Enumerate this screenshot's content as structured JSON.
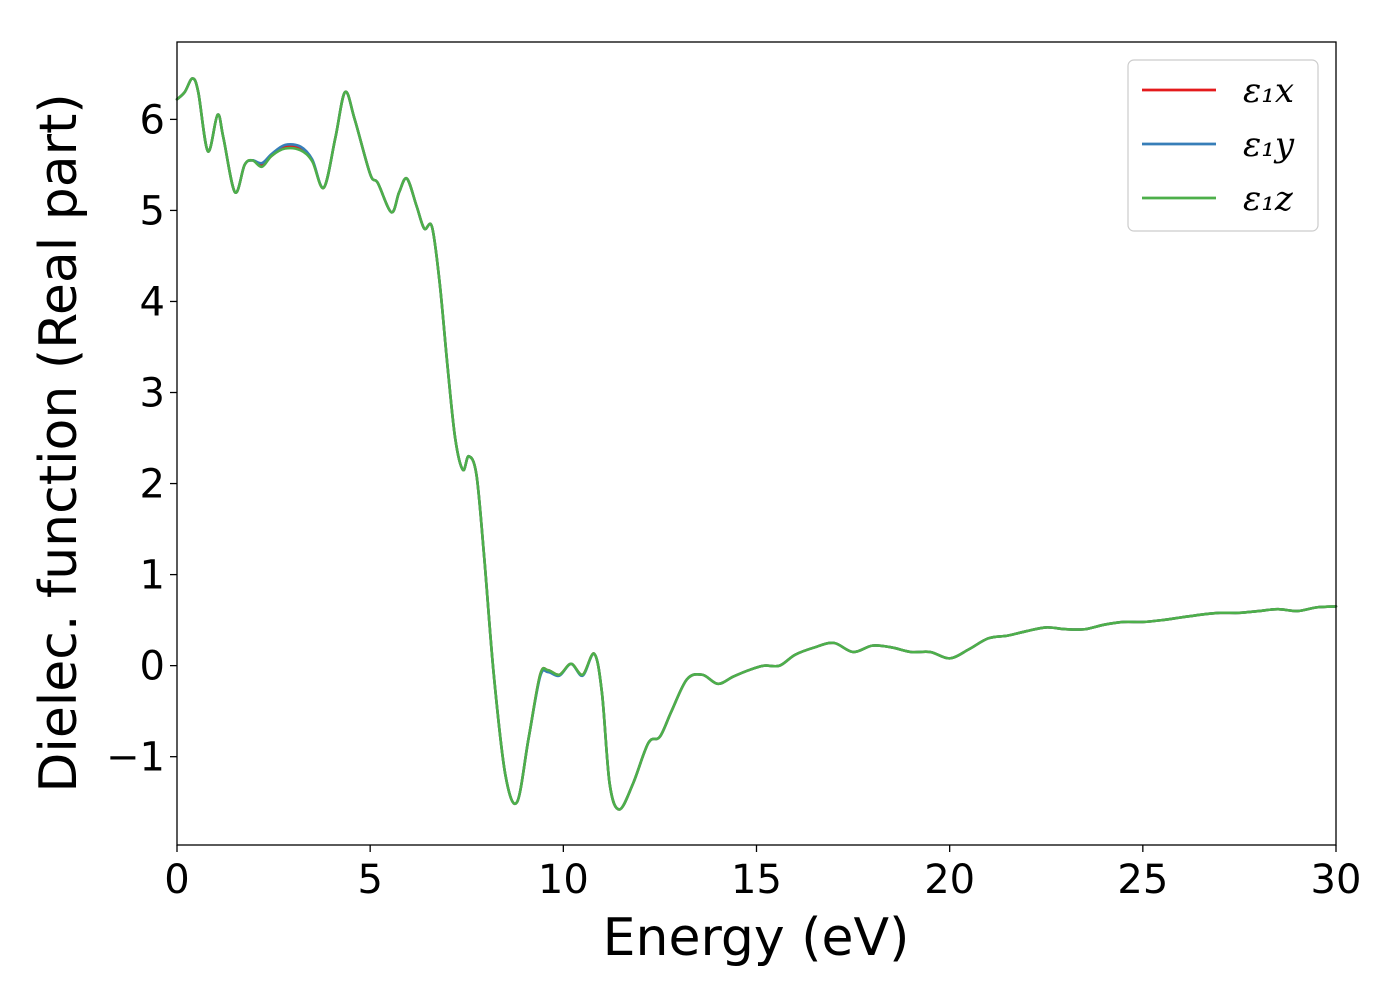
{
  "chart_data": {
    "type": "line",
    "title": "",
    "xlabel": "Energy (eV)",
    "ylabel": "Dielec. function (Real part)",
    "xlim": [
      0,
      30
    ],
    "ylim": [
      -1.97,
      6.85
    ],
    "xticks": [
      0,
      5,
      10,
      15,
      20,
      25,
      30
    ],
    "xtick_labels": [
      "0",
      "5",
      "10",
      "15",
      "20",
      "25",
      "30"
    ],
    "yticks": [
      -1,
      0,
      1,
      2,
      3,
      4,
      5,
      6
    ],
    "ytick_labels": [
      "−1",
      "0",
      "1",
      "2",
      "3",
      "4",
      "5",
      "6"
    ],
    "grid": false,
    "legend_position": "top-right",
    "x": [
      0,
      0.2,
      0.4,
      0.55,
      0.8,
      1.05,
      1.2,
      1.5,
      1.75,
      1.95,
      2.2,
      2.45,
      2.8,
      3.2,
      3.5,
      3.8,
      4.1,
      4.35,
      4.6,
      5.0,
      5.2,
      5.55,
      5.75,
      5.95,
      6.2,
      6.4,
      6.6,
      6.8,
      7.0,
      7.2,
      7.4,
      7.55,
      7.75,
      7.95,
      8.2,
      8.5,
      8.8,
      9.1,
      9.4,
      9.6,
      9.9,
      10.2,
      10.5,
      10.8,
      11.0,
      11.2,
      11.45,
      11.8,
      12.2,
      12.5,
      12.8,
      13.2,
      13.6,
      14.0,
      14.4,
      14.8,
      15.2,
      15.6,
      16.0,
      16.5,
      17.0,
      17.5,
      18.0,
      18.5,
      19.0,
      19.5,
      20.0,
      20.5,
      21.0,
      21.5,
      22.0,
      22.5,
      23.0,
      23.5,
      24.0,
      24.5,
      25.0,
      25.5,
      26.0,
      26.5,
      27.0,
      27.5,
      28.0,
      28.5,
      29.0,
      29.5,
      30.0
    ],
    "series": [
      {
        "name": "ε₁x",
        "color": "#e41a1c",
        "values": [
          6.22,
          6.3,
          6.45,
          6.3,
          5.65,
          6.05,
          5.8,
          5.2,
          5.5,
          5.55,
          5.5,
          5.6,
          5.7,
          5.68,
          5.55,
          5.25,
          5.8,
          6.3,
          6.0,
          5.4,
          5.3,
          4.98,
          5.2,
          5.35,
          5.05,
          4.8,
          4.82,
          4.2,
          3.3,
          2.5,
          2.15,
          2.3,
          2.1,
          1.2,
          -0.1,
          -1.2,
          -1.5,
          -0.8,
          -0.1,
          -0.05,
          -0.1,
          0.02,
          -0.1,
          0.13,
          -0.3,
          -1.3,
          -1.58,
          -1.3,
          -0.85,
          -0.78,
          -0.5,
          -0.15,
          -0.1,
          -0.2,
          -0.12,
          -0.05,
          0.0,
          0.0,
          0.12,
          0.2,
          0.25,
          0.15,
          0.22,
          0.2,
          0.15,
          0.15,
          0.08,
          0.18,
          0.3,
          0.33,
          0.38,
          0.42,
          0.4,
          0.4,
          0.45,
          0.48,
          0.48,
          0.5,
          0.53,
          0.56,
          0.58,
          0.58,
          0.6,
          0.62,
          0.6,
          0.64,
          0.65
        ]
      },
      {
        "name": "ε₁y",
        "color": "#377eb8",
        "values": [
          6.22,
          6.3,
          6.45,
          6.3,
          5.65,
          6.05,
          5.8,
          5.2,
          5.5,
          5.55,
          5.52,
          5.62,
          5.72,
          5.7,
          5.56,
          5.25,
          5.8,
          6.3,
          6.0,
          5.4,
          5.3,
          4.98,
          5.2,
          5.35,
          5.05,
          4.8,
          4.82,
          4.2,
          3.3,
          2.5,
          2.15,
          2.3,
          2.1,
          1.2,
          -0.1,
          -1.2,
          -1.5,
          -0.8,
          -0.12,
          -0.07,
          -0.11,
          0.02,
          -0.11,
          0.13,
          -0.3,
          -1.3,
          -1.58,
          -1.3,
          -0.85,
          -0.78,
          -0.5,
          -0.15,
          -0.1,
          -0.2,
          -0.12,
          -0.05,
          0.0,
          0.0,
          0.12,
          0.2,
          0.25,
          0.15,
          0.22,
          0.2,
          0.15,
          0.15,
          0.08,
          0.18,
          0.3,
          0.33,
          0.38,
          0.42,
          0.4,
          0.4,
          0.45,
          0.48,
          0.48,
          0.5,
          0.53,
          0.56,
          0.58,
          0.58,
          0.6,
          0.62,
          0.6,
          0.64,
          0.65
        ]
      },
      {
        "name": "ε₁z",
        "color": "#4daf4a",
        "values": [
          6.22,
          6.3,
          6.45,
          6.3,
          5.65,
          6.05,
          5.8,
          5.2,
          5.5,
          5.55,
          5.48,
          5.6,
          5.68,
          5.66,
          5.54,
          5.25,
          5.8,
          6.3,
          6.0,
          5.4,
          5.3,
          4.98,
          5.2,
          5.35,
          5.05,
          4.8,
          4.82,
          4.2,
          3.3,
          2.5,
          2.15,
          2.3,
          2.1,
          1.2,
          -0.1,
          -1.2,
          -1.5,
          -0.8,
          -0.1,
          -0.05,
          -0.1,
          0.02,
          -0.1,
          0.13,
          -0.3,
          -1.3,
          -1.58,
          -1.3,
          -0.85,
          -0.78,
          -0.5,
          -0.15,
          -0.1,
          -0.2,
          -0.12,
          -0.05,
          0.0,
          0.0,
          0.12,
          0.2,
          0.25,
          0.15,
          0.22,
          0.2,
          0.15,
          0.15,
          0.08,
          0.18,
          0.3,
          0.33,
          0.38,
          0.42,
          0.4,
          0.4,
          0.45,
          0.48,
          0.48,
          0.5,
          0.53,
          0.56,
          0.58,
          0.58,
          0.6,
          0.62,
          0.6,
          0.64,
          0.65
        ]
      }
    ]
  }
}
